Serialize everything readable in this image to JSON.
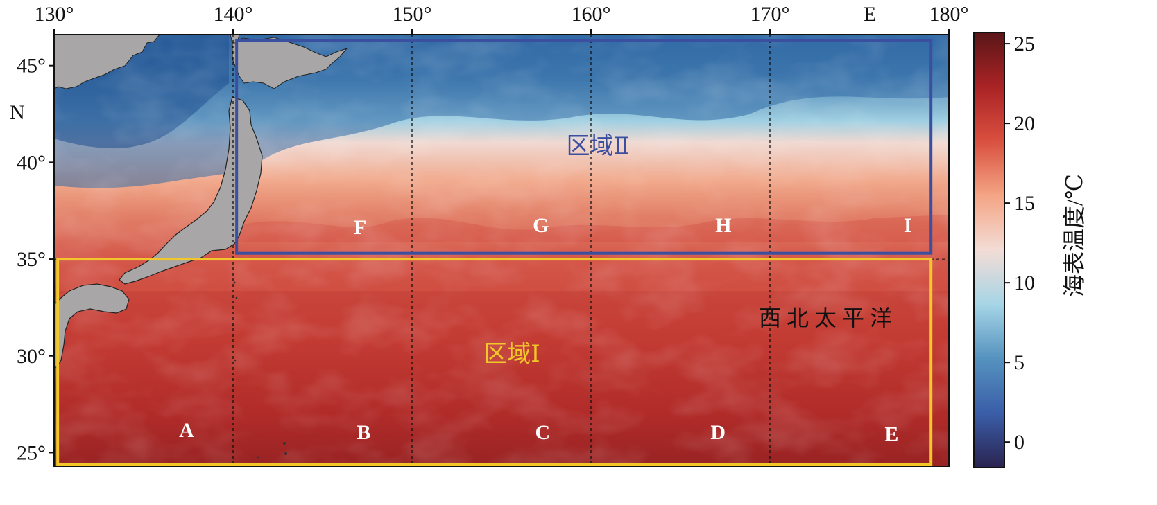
{
  "map": {
    "lon_ticks": [
      "130°",
      "140°",
      "150°",
      "160°",
      "170°",
      "180°"
    ],
    "lon_hemisphere": "E",
    "lat_ticks": [
      "45°",
      "40°",
      "35°",
      "30°",
      "25°"
    ],
    "lat_hemisphere": "N",
    "lon_range": [
      130,
      179
    ],
    "lat_range": [
      24.3,
      46.6
    ],
    "gridlines_lon": [
      140,
      150,
      160,
      170
    ],
    "gridline_style": "dashed black",
    "sea_label": "西 北 太 平 洋"
  },
  "regions": [
    {
      "label": "区域Ⅰ",
      "color": "#f2c72a",
      "bounds": {
        "lon": [
          130.2,
          179
        ],
        "lat": [
          24.4,
          35
        ]
      },
      "points": [
        "A",
        "B",
        "C",
        "D",
        "E"
      ]
    },
    {
      "label": "区域Ⅱ",
      "color": "#3b4fa0",
      "bounds": {
        "lon": [
          140.2,
          179
        ],
        "lat": [
          35.3,
          46.3
        ]
      },
      "points": [
        "F",
        "G",
        "H",
        "I"
      ]
    }
  ],
  "points": [
    {
      "label": "A",
      "lon": 137.4,
      "lat": 25.8
    },
    {
      "label": "B",
      "lon": 147.3,
      "lat": 25.7
    },
    {
      "label": "C",
      "lon": 157.3,
      "lat": 25.7
    },
    {
      "label": "D",
      "lon": 167.1,
      "lat": 25.7
    },
    {
      "label": "E",
      "lon": 176.8,
      "lat": 25.6
    },
    {
      "label": "F",
      "lon": 147.1,
      "lat": 36.3
    },
    {
      "label": "G",
      "lon": 157.2,
      "lat": 36.4
    },
    {
      "label": "H",
      "lon": 167.4,
      "lat": 36.4
    },
    {
      "label": "I",
      "lon": 177.7,
      "lat": 36.4
    }
  ],
  "colorbar": {
    "label": "海表温度/℃",
    "ticks": [
      "25",
      "20",
      "15",
      "10",
      "5",
      "0"
    ],
    "tick_values": [
      25,
      20,
      15,
      10,
      5,
      0
    ],
    "range": [
      -1.6,
      25.7
    ],
    "stops": [
      "#2a2350",
      "#3a5ea8",
      "#5592bf",
      "#a6d5e6",
      "#f3dcd6",
      "#f4a585",
      "#d9503f",
      "#aa2325",
      "#5a1618"
    ]
  },
  "colors": {
    "cold": "#2f6aa6",
    "cool": "#7ab8d2",
    "mild": "#f3c7b6",
    "warm": "#e9876d",
    "hot": "#c83a30",
    "hottest": "#8e1e1f",
    "land": "#a8a6a6"
  }
}
